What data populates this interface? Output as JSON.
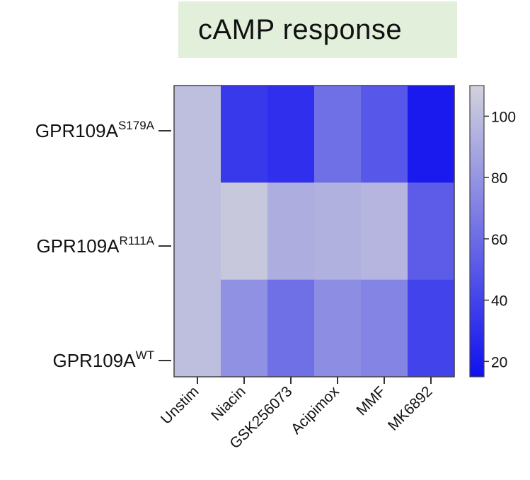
{
  "chart_data": {
    "type": "heatmap",
    "title": "cAMP response",
    "columns": [
      "Unstim",
      "Niacin",
      "GSK256073",
      "Acipimox",
      "MMF",
      "MK6892"
    ],
    "rows": [
      {
        "base": "GPR109A",
        "sup": "S179A"
      },
      {
        "base": "GPR109A",
        "sup": "R111A"
      },
      {
        "base": "GPR109A",
        "sup": "WT"
      }
    ],
    "values": [
      [
        100,
        35,
        30,
        62,
        50,
        20
      ],
      [
        100,
        105,
        92,
        94,
        96,
        52
      ],
      [
        100,
        78,
        62,
        76,
        72,
        40
      ]
    ],
    "colorbar": {
      "min": 15,
      "max": 110,
      "ticks": [
        20,
        40,
        60,
        80,
        100
      ],
      "low_color": "#1010f0",
      "high_color": "#d2d2dc"
    },
    "grid": false,
    "legend": "right"
  }
}
